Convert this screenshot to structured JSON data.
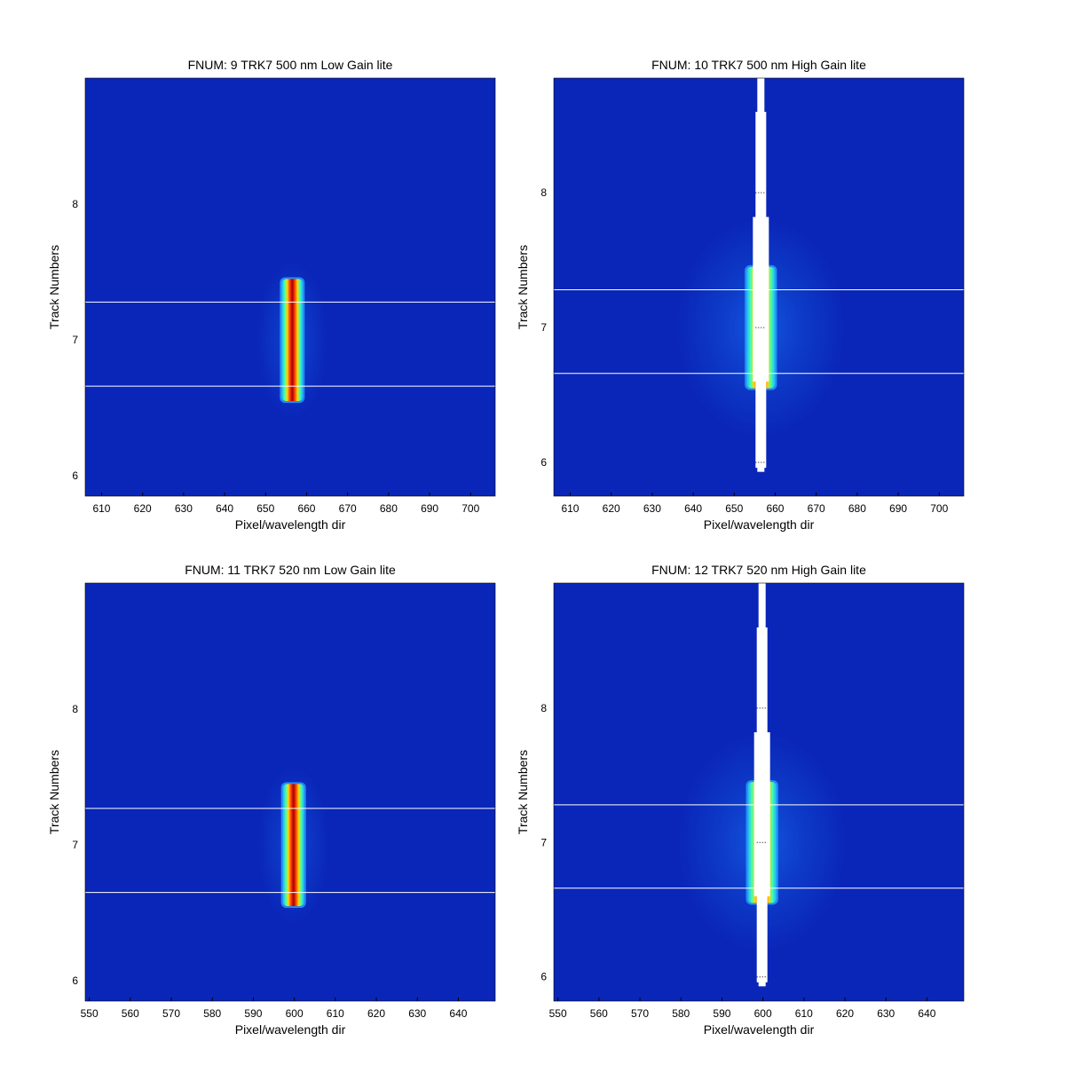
{
  "chart_data": [
    {
      "type": "heatmap",
      "title": "FNUM: 9 TRK7 500 nm Low Gain lite",
      "xlabel": "Pixel/wavelength dir",
      "ylabel": "Track Numbers",
      "xlim": [
        606,
        706
      ],
      "ylim": [
        5.85,
        8.93
      ],
      "xticks": [
        "610",
        "620",
        "630",
        "640",
        "650",
        "660",
        "670",
        "680",
        "690",
        "700"
      ],
      "yticks": [
        "6",
        "7",
        "8"
      ],
      "hlines": [
        7.28,
        6.66
      ],
      "spot": {
        "x_center": 656.5,
        "half_width": 2.6,
        "y_bottom": 6.55,
        "y_top": 7.45
      },
      "glow": "weak",
      "saturated": false
    },
    {
      "type": "heatmap",
      "title": "FNUM: 10 TRK7 500 nm High Gain lite",
      "xlabel": "Pixel/wavelength dir",
      "ylabel": "Track Numbers",
      "xlim": [
        606,
        706
      ],
      "ylim": [
        5.75,
        8.85
      ],
      "xticks": [
        "610",
        "620",
        "630",
        "640",
        "650",
        "660",
        "670",
        "680",
        "690",
        "700"
      ],
      "yticks": [
        "6",
        "7",
        "8"
      ],
      "hlines": [
        7.28,
        6.66
      ],
      "spot": {
        "x_center": 656.5,
        "half_width": 3.5,
        "y_bottom": 6.55,
        "y_top": 7.45
      },
      "glow": "strong",
      "saturated": true
    },
    {
      "type": "heatmap",
      "title": "FNUM: 11 TRK7 520 nm Low Gain lite",
      "xlabel": "Pixel/wavelength dir",
      "ylabel": "Track Numbers",
      "xlim": [
        549,
        649
      ],
      "ylim": [
        5.85,
        8.93
      ],
      "xticks": [
        "550",
        "560",
        "570",
        "580",
        "590",
        "600",
        "610",
        "620",
        "630",
        "640"
      ],
      "yticks": [
        "6",
        "7",
        "8"
      ],
      "hlines": [
        7.27,
        6.65
      ],
      "spot": {
        "x_center": 599.8,
        "half_width": 2.6,
        "y_bottom": 6.55,
        "y_top": 7.45
      },
      "glow": "weak",
      "saturated": false
    },
    {
      "type": "heatmap",
      "title": "FNUM: 12 TRK7 520 nm High Gain lite",
      "xlabel": "Pixel/wavelength dir",
      "ylabel": "Track Numbers",
      "xlim": [
        549,
        649
      ],
      "ylim": [
        5.82,
        8.93
      ],
      "xticks": [
        "550",
        "560",
        "570",
        "580",
        "590",
        "600",
        "610",
        "620",
        "630",
        "640"
      ],
      "yticks": [
        "6",
        "7",
        "8"
      ],
      "hlines": [
        7.28,
        6.66
      ],
      "spot": {
        "x_center": 599.8,
        "half_width": 3.5,
        "y_bottom": 6.55,
        "y_top": 7.45
      },
      "glow": "strong",
      "saturated": true
    }
  ],
  "colors": {
    "background": "#0a26b8",
    "glow": "#1a7fff",
    "spot_edge": "#ffd800",
    "spot_core": "#a80000",
    "overlay_lines": "#ffffff"
  }
}
